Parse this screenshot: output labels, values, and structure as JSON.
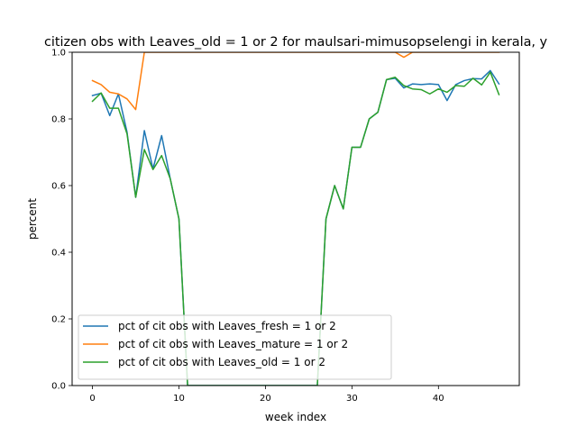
{
  "chart_data": {
    "type": "line",
    "title": "citizen obs with Leaves_old = 1 or 2 for maulsari-mimusopselengi in kerala, y",
    "xlabel": "week index",
    "ylabel": "percent",
    "xlim": [
      -2.35,
      49.35
    ],
    "ylim": [
      0,
      1
    ],
    "xticks": [
      0,
      10,
      20,
      30,
      40
    ],
    "xtick_labels": [
      "0",
      "10",
      "20",
      "30",
      "40"
    ],
    "yticks": [
      0,
      0.2,
      0.4,
      0.6,
      0.8,
      1.0
    ],
    "ytick_labels": [
      "0.0",
      "0.2",
      "0.4",
      "0.6",
      "0.8",
      "1.0"
    ],
    "grid": false,
    "legend_position": "lower-left",
    "x": [
      0,
      1,
      2,
      3,
      4,
      5,
      6,
      7,
      8,
      9,
      10,
      11,
      12,
      13,
      14,
      15,
      16,
      17,
      18,
      19,
      20,
      21,
      22,
      23,
      24,
      25,
      26,
      27,
      28,
      29,
      30,
      31,
      32,
      33,
      34,
      35,
      36,
      37,
      38,
      39,
      40,
      41,
      42,
      43,
      44,
      45,
      46,
      47
    ],
    "series": [
      {
        "name": "pct of cit obs with Leaves_fresh = 1 or 2",
        "color": "#1f77b4",
        "values": [
          0.87,
          0.877,
          0.81,
          0.875,
          0.76,
          0.565,
          0.765,
          0.65,
          0.75,
          0.62,
          0.5,
          0,
          0,
          0,
          0,
          0,
          0,
          0,
          0,
          0,
          0,
          0,
          0,
          0,
          0,
          0,
          0,
          0.5,
          0.6,
          0.53,
          0.715,
          0.715,
          0.8,
          0.82,
          0.918,
          0.922,
          0.893,
          0.905,
          0.903,
          0.905,
          0.903,
          0.855,
          0.903,
          0.915,
          0.921,
          0.92,
          0.945,
          0.905
        ]
      },
      {
        "name": "pct of cit obs with Leaves_mature = 1 or 2",
        "color": "#ff7f0e",
        "values": [
          0.915,
          0.903,
          0.88,
          0.875,
          0.86,
          0.828,
          1.0,
          1.0,
          1.0,
          1.0,
          1.0,
          1.0,
          1.0,
          1.0,
          1.0,
          1.0,
          1.0,
          1.0,
          1.0,
          1.0,
          1.0,
          1.0,
          1.0,
          1.0,
          1.0,
          1.0,
          1.0,
          1.0,
          1.0,
          1.0,
          1.0,
          1.0,
          1.0,
          1.0,
          1.0,
          1.0,
          0.985,
          1.0,
          1.0,
          1.0,
          1.0,
          1.0,
          1.0,
          1.0,
          1.0,
          1.0,
          1.0,
          1.0
        ]
      },
      {
        "name": "pct of cit obs with Leaves_old = 1 or 2",
        "color": "#2ca02c",
        "values": [
          0.853,
          0.878,
          0.832,
          0.832,
          0.755,
          0.565,
          0.708,
          0.648,
          0.69,
          0.62,
          0.5,
          0,
          0,
          0,
          0,
          0,
          0,
          0,
          0,
          0,
          0,
          0,
          0,
          0,
          0,
          0,
          0,
          0.5,
          0.6,
          0.53,
          0.715,
          0.715,
          0.8,
          0.82,
          0.918,
          0.925,
          0.9,
          0.89,
          0.888,
          0.875,
          0.89,
          0.88,
          0.9,
          0.898,
          0.922,
          0.902,
          0.94,
          0.873
        ]
      }
    ]
  }
}
